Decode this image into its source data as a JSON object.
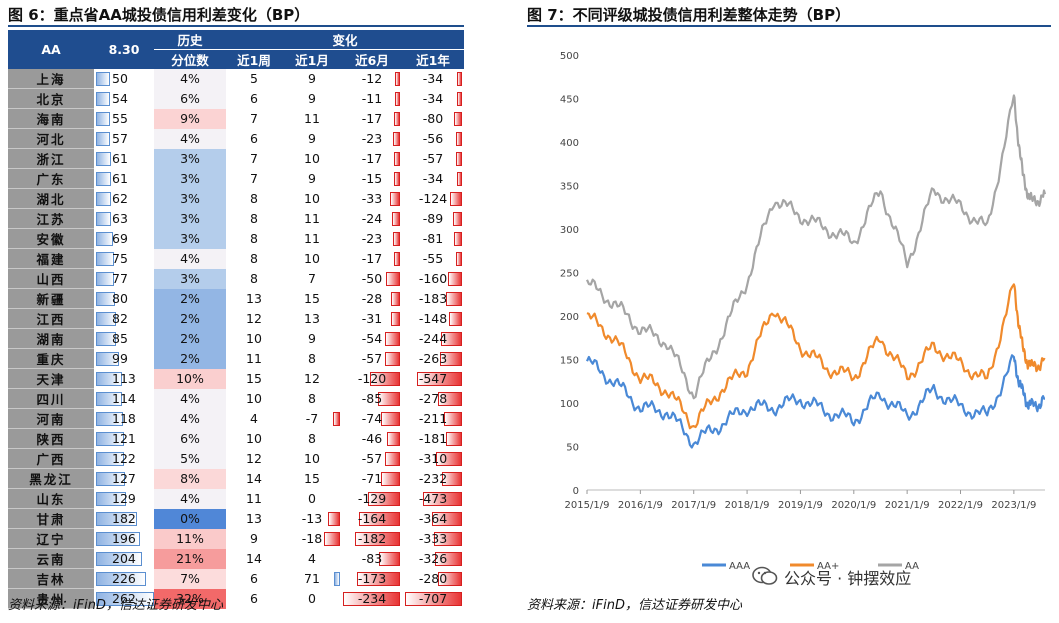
{
  "left": {
    "title": "图 6：重点省AA城投债信用利差变化（BP）",
    "source": "资料来源：iFinD，信达证券研发中心",
    "headers": {
      "col1": "AA",
      "col2": "8.30",
      "col3_top": "历史",
      "col3_bottom": "分位数",
      "change_group": "变化",
      "w1": "近1周",
      "m1": "近1月",
      "m6": "近6月",
      "y1": "近1年"
    },
    "rows": [
      {
        "prov": "上海",
        "v": "50",
        "p": "4%",
        "pct": 4,
        "w1": "5",
        "m1": "9",
        "m6": "-12",
        "y1": "-34",
        "vn": 50,
        "m1n": 9,
        "m6n": -12,
        "y1n": -34
      },
      {
        "prov": "北京",
        "v": "54",
        "p": "6%",
        "pct": 6,
        "w1": "6",
        "m1": "9",
        "m6": "-11",
        "y1": "-34",
        "vn": 54,
        "m1n": 9,
        "m6n": -11,
        "y1n": -34
      },
      {
        "prov": "海南",
        "v": "55",
        "p": "9%",
        "pct": 9,
        "w1": "7",
        "m1": "11",
        "m6": "-17",
        "y1": "-80",
        "vn": 55,
        "m1n": 11,
        "m6n": -17,
        "y1n": -80
      },
      {
        "prov": "河北",
        "v": "57",
        "p": "4%",
        "pct": 4,
        "w1": "6",
        "m1": "9",
        "m6": "-23",
        "y1": "-56",
        "vn": 57,
        "m1n": 9,
        "m6n": -23,
        "y1n": -56
      },
      {
        "prov": "浙江",
        "v": "61",
        "p": "3%",
        "pct": 3,
        "w1": "7",
        "m1": "10",
        "m6": "-17",
        "y1": "-57",
        "vn": 61,
        "m1n": 10,
        "m6n": -17,
        "y1n": -57
      },
      {
        "prov": "广东",
        "v": "61",
        "p": "3%",
        "pct": 3,
        "w1": "7",
        "m1": "9",
        "m6": "-15",
        "y1": "-34",
        "vn": 61,
        "m1n": 9,
        "m6n": -15,
        "y1n": -34
      },
      {
        "prov": "湖北",
        "v": "62",
        "p": "3%",
        "pct": 3,
        "w1": "8",
        "m1": "10",
        "m6": "-33",
        "y1": "-124",
        "vn": 62,
        "m1n": 10,
        "m6n": -33,
        "y1n": -124
      },
      {
        "prov": "江苏",
        "v": "63",
        "p": "3%",
        "pct": 3,
        "w1": "8",
        "m1": "11",
        "m6": "-24",
        "y1": "-89",
        "vn": 63,
        "m1n": 11,
        "m6n": -24,
        "y1n": -89
      },
      {
        "prov": "安徽",
        "v": "69",
        "p": "3%",
        "pct": 3,
        "w1": "8",
        "m1": "11",
        "m6": "-23",
        "y1": "-81",
        "vn": 69,
        "m1n": 11,
        "m6n": -23,
        "y1n": -81
      },
      {
        "prov": "福建",
        "v": "75",
        "p": "4%",
        "pct": 4,
        "w1": "8",
        "m1": "10",
        "m6": "-17",
        "y1": "-55",
        "vn": 75,
        "m1n": 10,
        "m6n": -17,
        "y1n": -55
      },
      {
        "prov": "山西",
        "v": "77",
        "p": "3%",
        "pct": 3,
        "w1": "8",
        "m1": "7",
        "m6": "-50",
        "y1": "-160",
        "vn": 77,
        "m1n": 7,
        "m6n": -50,
        "y1n": -160
      },
      {
        "prov": "新疆",
        "v": "80",
        "p": "2%",
        "pct": 2,
        "w1": "13",
        "m1": "15",
        "m6": "-28",
        "y1": "-183",
        "vn": 80,
        "m1n": 15,
        "m6n": -28,
        "y1n": -183
      },
      {
        "prov": "江西",
        "v": "82",
        "p": "2%",
        "pct": 2,
        "w1": "12",
        "m1": "13",
        "m6": "-31",
        "y1": "-148",
        "vn": 82,
        "m1n": 13,
        "m6n": -31,
        "y1n": -148
      },
      {
        "prov": "湖南",
        "v": "85",
        "p": "2%",
        "pct": 2,
        "w1": "10",
        "m1": "9",
        "m6": "-54",
        "y1": "-244",
        "vn": 85,
        "m1n": 9,
        "m6n": -54,
        "y1n": -244
      },
      {
        "prov": "重庆",
        "v": "99",
        "p": "2%",
        "pct": 2,
        "w1": "11",
        "m1": "8",
        "m6": "-57",
        "y1": "-263",
        "vn": 99,
        "m1n": 8,
        "m6n": -57,
        "y1n": -263
      },
      {
        "prov": "天津",
        "v": "113",
        "p": "10%",
        "pct": 10,
        "w1": "15",
        "m1": "12",
        "m6": "-120",
        "y1": "-547",
        "vn": 113,
        "m1n": 12,
        "m6n": -120,
        "y1n": -547
      },
      {
        "prov": "四川",
        "v": "114",
        "p": "4%",
        "pct": 4,
        "w1": "10",
        "m1": "8",
        "m6": "-85",
        "y1": "-278",
        "vn": 114,
        "m1n": 8,
        "m6n": -85,
        "y1n": -278
      },
      {
        "prov": "河南",
        "v": "118",
        "p": "4%",
        "pct": 4,
        "w1": "4",
        "m1": "-7",
        "m6": "-74",
        "y1": "-211",
        "vn": 118,
        "m1n": -7,
        "m6n": -74,
        "y1n": -211
      },
      {
        "prov": "陕西",
        "v": "121",
        "p": "6%",
        "pct": 6,
        "w1": "10",
        "m1": "8",
        "m6": "-46",
        "y1": "-181",
        "vn": 121,
        "m1n": 8,
        "m6n": -46,
        "y1n": -181
      },
      {
        "prov": "广西",
        "v": "122",
        "p": "5%",
        "pct": 5,
        "w1": "12",
        "m1": "10",
        "m6": "-57",
        "y1": "-310",
        "vn": 122,
        "m1n": 10,
        "m6n": -57,
        "y1n": -310
      },
      {
        "prov": "黑龙江",
        "v": "127",
        "p": "8%",
        "pct": 8,
        "w1": "14",
        "m1": "15",
        "m6": "-71",
        "y1": "-232",
        "vn": 127,
        "m1n": 15,
        "m6n": -71,
        "y1n": -232
      },
      {
        "prov": "山东",
        "v": "129",
        "p": "4%",
        "pct": 4,
        "w1": "11",
        "m1": "0",
        "m6": "-129",
        "y1": "-473",
        "vn": 129,
        "m1n": 0,
        "m6n": -129,
        "y1n": -473
      },
      {
        "prov": "甘肃",
        "v": "182",
        "p": "0%",
        "pct": 0,
        "w1": "13",
        "m1": "-13",
        "m6": "-164",
        "y1": "-364",
        "vn": 182,
        "m1n": -13,
        "m6n": -164,
        "y1n": -364
      },
      {
        "prov": "辽宁",
        "v": "196",
        "p": "11%",
        "pct": 11,
        "w1": "9",
        "m1": "-18",
        "m6": "-182",
        "y1": "-333",
        "vn": 196,
        "m1n": -18,
        "m6n": -182,
        "y1n": -333
      },
      {
        "prov": "云南",
        "v": "204",
        "p": "21%",
        "pct": 21,
        "w1": "14",
        "m1": "4",
        "m6": "-83",
        "y1": "-326",
        "vn": 204,
        "m1n": 4,
        "m6n": -83,
        "y1n": -326
      },
      {
        "prov": "吉林",
        "v": "226",
        "p": "7%",
        "pct": 7,
        "w1": "6",
        "m1": "71",
        "m6": "-173",
        "y1": "-280",
        "vn": 226,
        "m1n": 71,
        "m6n": -173,
        "y1n": -280
      },
      {
        "prov": "贵州",
        "v": "262",
        "p": "32%",
        "pct": 32,
        "w1": "6",
        "m1": "0",
        "m6": "-234",
        "y1": "-707",
        "vn": 262,
        "m1n": 0,
        "m6n": -234,
        "y1n": -707
      }
    ]
  },
  "right": {
    "title": "图 7：不同评级城投债信用利差整体走势（BP）",
    "source": "资料来源：iFinD，信达证券研发中心",
    "watermark": "公众号 · 钟摆效应"
  },
  "chart_data": {
    "type": "line",
    "title": "图 7：不同评级城投债信用利差整体走势（BP）",
    "xlabel": "",
    "ylabel": "",
    "ylim": [
      0,
      500
    ],
    "yticks": [
      "0",
      "50",
      "100",
      "150",
      "200",
      "250",
      "300",
      "350",
      "400",
      "450",
      "500"
    ],
    "x": [
      "2015/1/9",
      "2015/7/9",
      "2016/1/9",
      "2016/7/9",
      "2017/1/9",
      "2017/7/9",
      "2018/1/9",
      "2018/7/9",
      "2019/1/9",
      "2019/7/9",
      "2020/1/9",
      "2020/7/9",
      "2021/1/9",
      "2021/7/9",
      "2022/1/9",
      "2022/7/9",
      "2023/1/9",
      "2023/3/9",
      "2023/5/9",
      "2023/8/30"
    ],
    "xticks": [
      "2015/1/9",
      "2016/1/9",
      "2017/1/9",
      "2018/1/9",
      "2019/1/9",
      "2020/1/9",
      "2021/1/9",
      "2022/1/9",
      "2023/1/9"
    ],
    "series": [
      {
        "name": "AAA",
        "color": "#4a89d6",
        "values": [
          148,
          125,
          95,
          90,
          55,
          75,
          95,
          95,
          105,
          90,
          80,
          110,
          85,
          115,
          95,
          85,
          150,
          110,
          95,
          105
        ]
      },
      {
        "name": "AA+",
        "color": "#f08a2c",
        "values": [
          200,
          175,
          130,
          115,
          75,
          115,
          140,
          210,
          165,
          140,
          130,
          175,
          130,
          165,
          145,
          125,
          235,
          160,
          140,
          150
        ]
      },
      {
        "name": "AA",
        "color": "#a5a5a5",
        "values": [
          238,
          215,
          185,
          170,
          110,
          175,
          240,
          335,
          315,
          300,
          285,
          345,
          260,
          345,
          325,
          300,
          450,
          360,
          330,
          340
        ]
      }
    ],
    "legend_position": "bottom",
    "grid": false
  }
}
